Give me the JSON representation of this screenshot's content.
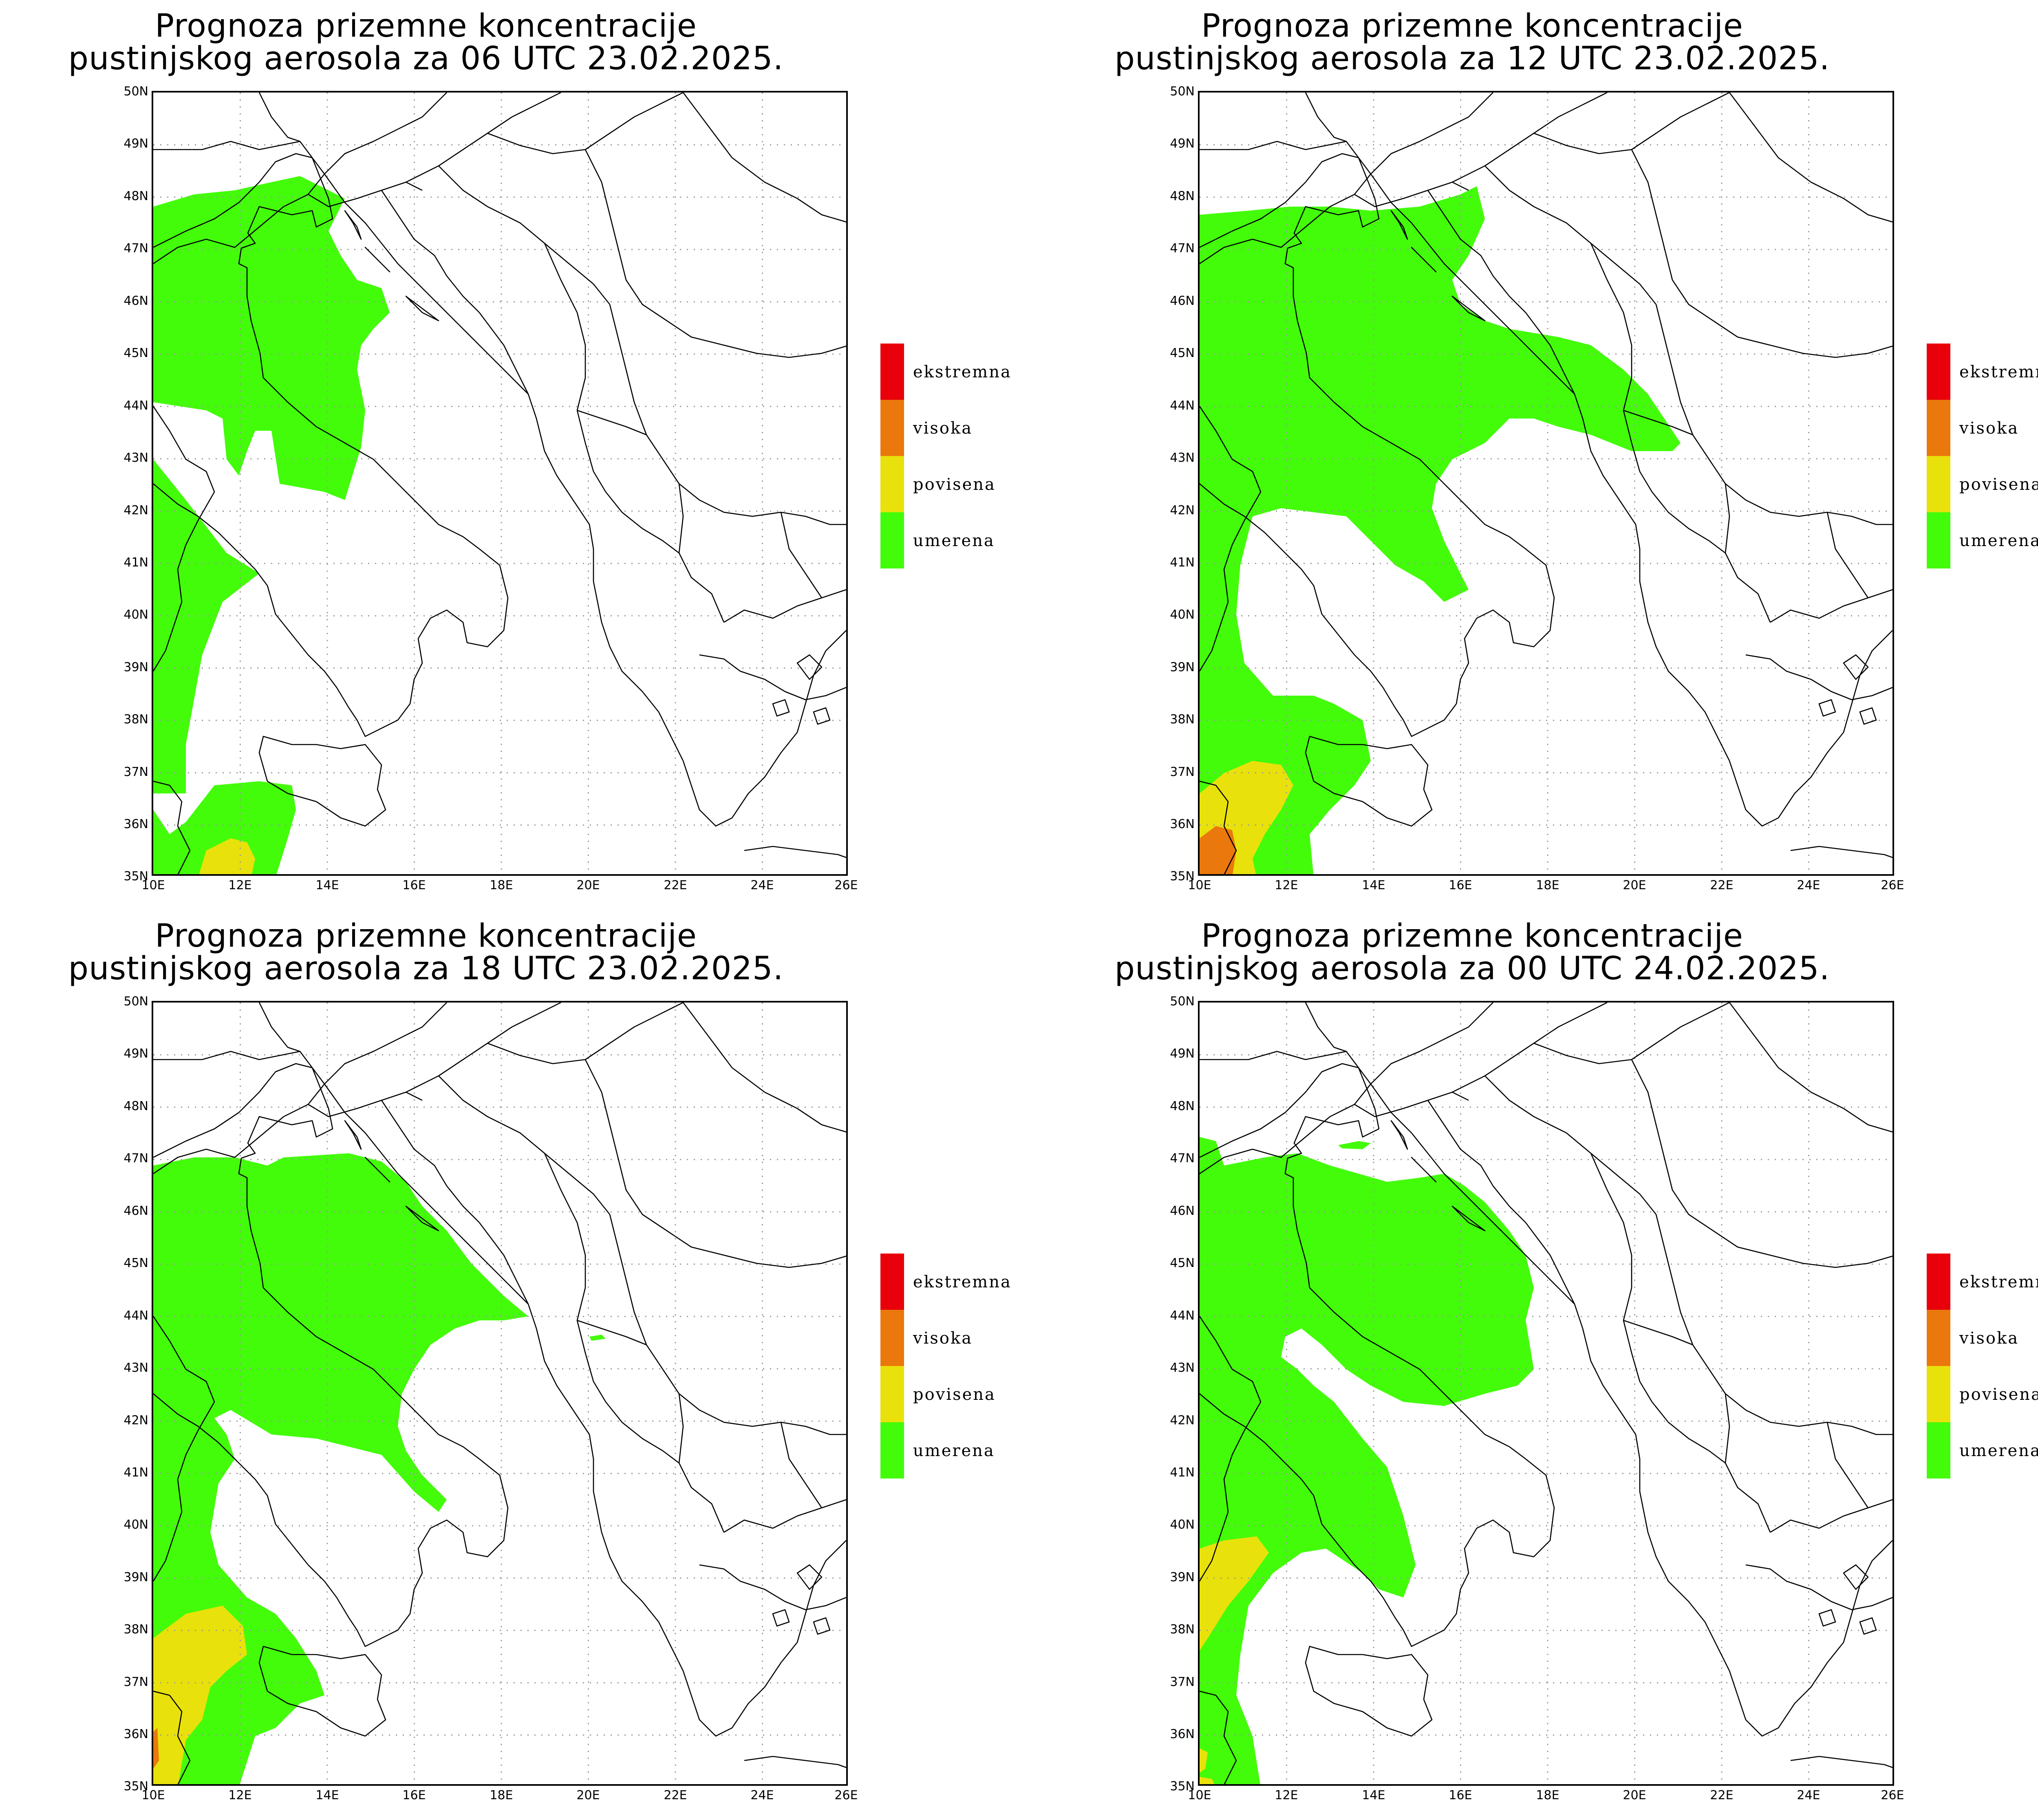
{
  "panels": [
    {
      "title_line1": "Prognoza prizemne koncentracije",
      "title_line2": "pustinjskog aerosola za 06 UTC 23.02.2025.",
      "forecast_time": "06 UTC 23.02.2025."
    },
    {
      "title_line1": "Prognoza prizemne koncentracije",
      "title_line2": "pustinjskog aerosola za 12 UTC 23.02.2025.",
      "forecast_time": "12 UTC 23.02.2025."
    },
    {
      "title_line1": "Prognoza prizemne koncentracije",
      "title_line2": "pustinjskog aerosola za 18 UTC 23.02.2025.",
      "forecast_time": "18 UTC 23.02.2025."
    },
    {
      "title_line1": "Prognoza prizemne koncentracije",
      "title_line2": "pustinjskog aerosola za 00 UTC 24.02.2025.",
      "forecast_time": "00 UTC 24.02.2025."
    }
  ],
  "axes": {
    "lat_labels": [
      "50N",
      "49N",
      "48N",
      "47N",
      "46N",
      "45N",
      "44N",
      "43N",
      "42N",
      "41N",
      "40N",
      "39N",
      "38N",
      "37N",
      "36N",
      "35N"
    ],
    "lon_labels": [
      "10E",
      "12E",
      "14E",
      "16E",
      "18E",
      "20E",
      "22E",
      "24E",
      "26E"
    ],
    "lat_range": [
      35,
      50
    ],
    "lon_range": [
      10,
      26
    ],
    "grid": "dotted"
  },
  "legend": [
    {
      "label": "ekstremna",
      "color": "#e8000b"
    },
    {
      "label": "visoka",
      "color": "#ea780c"
    },
    {
      "label": "povisena",
      "color": "#e9e10b"
    },
    {
      "label": "umerena",
      "color": "#43fc0a"
    }
  ],
  "colors": {
    "umerena": "#43fc0a",
    "povisena": "#e9e10b",
    "visoka": "#ea780c",
    "ekstremna": "#e8000b",
    "borders": "#000000",
    "grid": "#9a9a9a"
  }
}
